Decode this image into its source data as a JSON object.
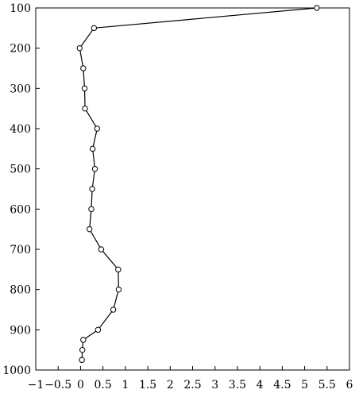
{
  "chart_data": {
    "type": "line",
    "title": "",
    "xlabel": "",
    "ylabel": "",
    "xlim": [
      -1,
      6
    ],
    "ylim": [
      100,
      1000
    ],
    "y_inverted": true,
    "grid": false,
    "legend": "none",
    "x_ticks": [
      -1,
      -0.5,
      0,
      0.5,
      1,
      1.5,
      2,
      2.5,
      3,
      3.5,
      4,
      4.5,
      5,
      5.5,
      6
    ],
    "x_tick_labels": [
      "−1",
      "−0.5",
      "0",
      "0.5",
      "1",
      "1.5",
      "2",
      "2.5",
      "3",
      "3.5",
      "4",
      "4.5",
      "5",
      "5.5",
      "6"
    ],
    "y_ticks": [
      100,
      200,
      300,
      400,
      500,
      600,
      700,
      800,
      900,
      1000
    ],
    "y_tick_labels": [
      "100",
      "200",
      "300",
      "400",
      "500",
      "600",
      "700",
      "800",
      "900",
      "1000"
    ],
    "series": [
      {
        "points": [
          {
            "x": 5.27,
            "y": 100
          },
          {
            "x": 0.3,
            "y": 150
          },
          {
            "x": -0.02,
            "y": 200
          },
          {
            "x": 0.06,
            "y": 250
          },
          {
            "x": 0.09,
            "y": 300
          },
          {
            "x": 0.1,
            "y": 350
          },
          {
            "x": 0.37,
            "y": 400
          },
          {
            "x": 0.27,
            "y": 450
          },
          {
            "x": 0.32,
            "y": 500
          },
          {
            "x": 0.26,
            "y": 550
          },
          {
            "x": 0.24,
            "y": 600
          },
          {
            "x": 0.2,
            "y": 650
          },
          {
            "x": 0.46,
            "y": 700
          },
          {
            "x": 0.84,
            "y": 750
          },
          {
            "x": 0.85,
            "y": 800
          },
          {
            "x": 0.73,
            "y": 850
          },
          {
            "x": 0.39,
            "y": 900
          },
          {
            "x": 0.06,
            "y": 925
          },
          {
            "x": 0.04,
            "y": 950
          },
          {
            "x": 0.03,
            "y": 975
          }
        ]
      }
    ],
    "colors": {
      "line": "#000000",
      "marker_fill": "#ffffff",
      "axis": "#000000"
    }
  }
}
